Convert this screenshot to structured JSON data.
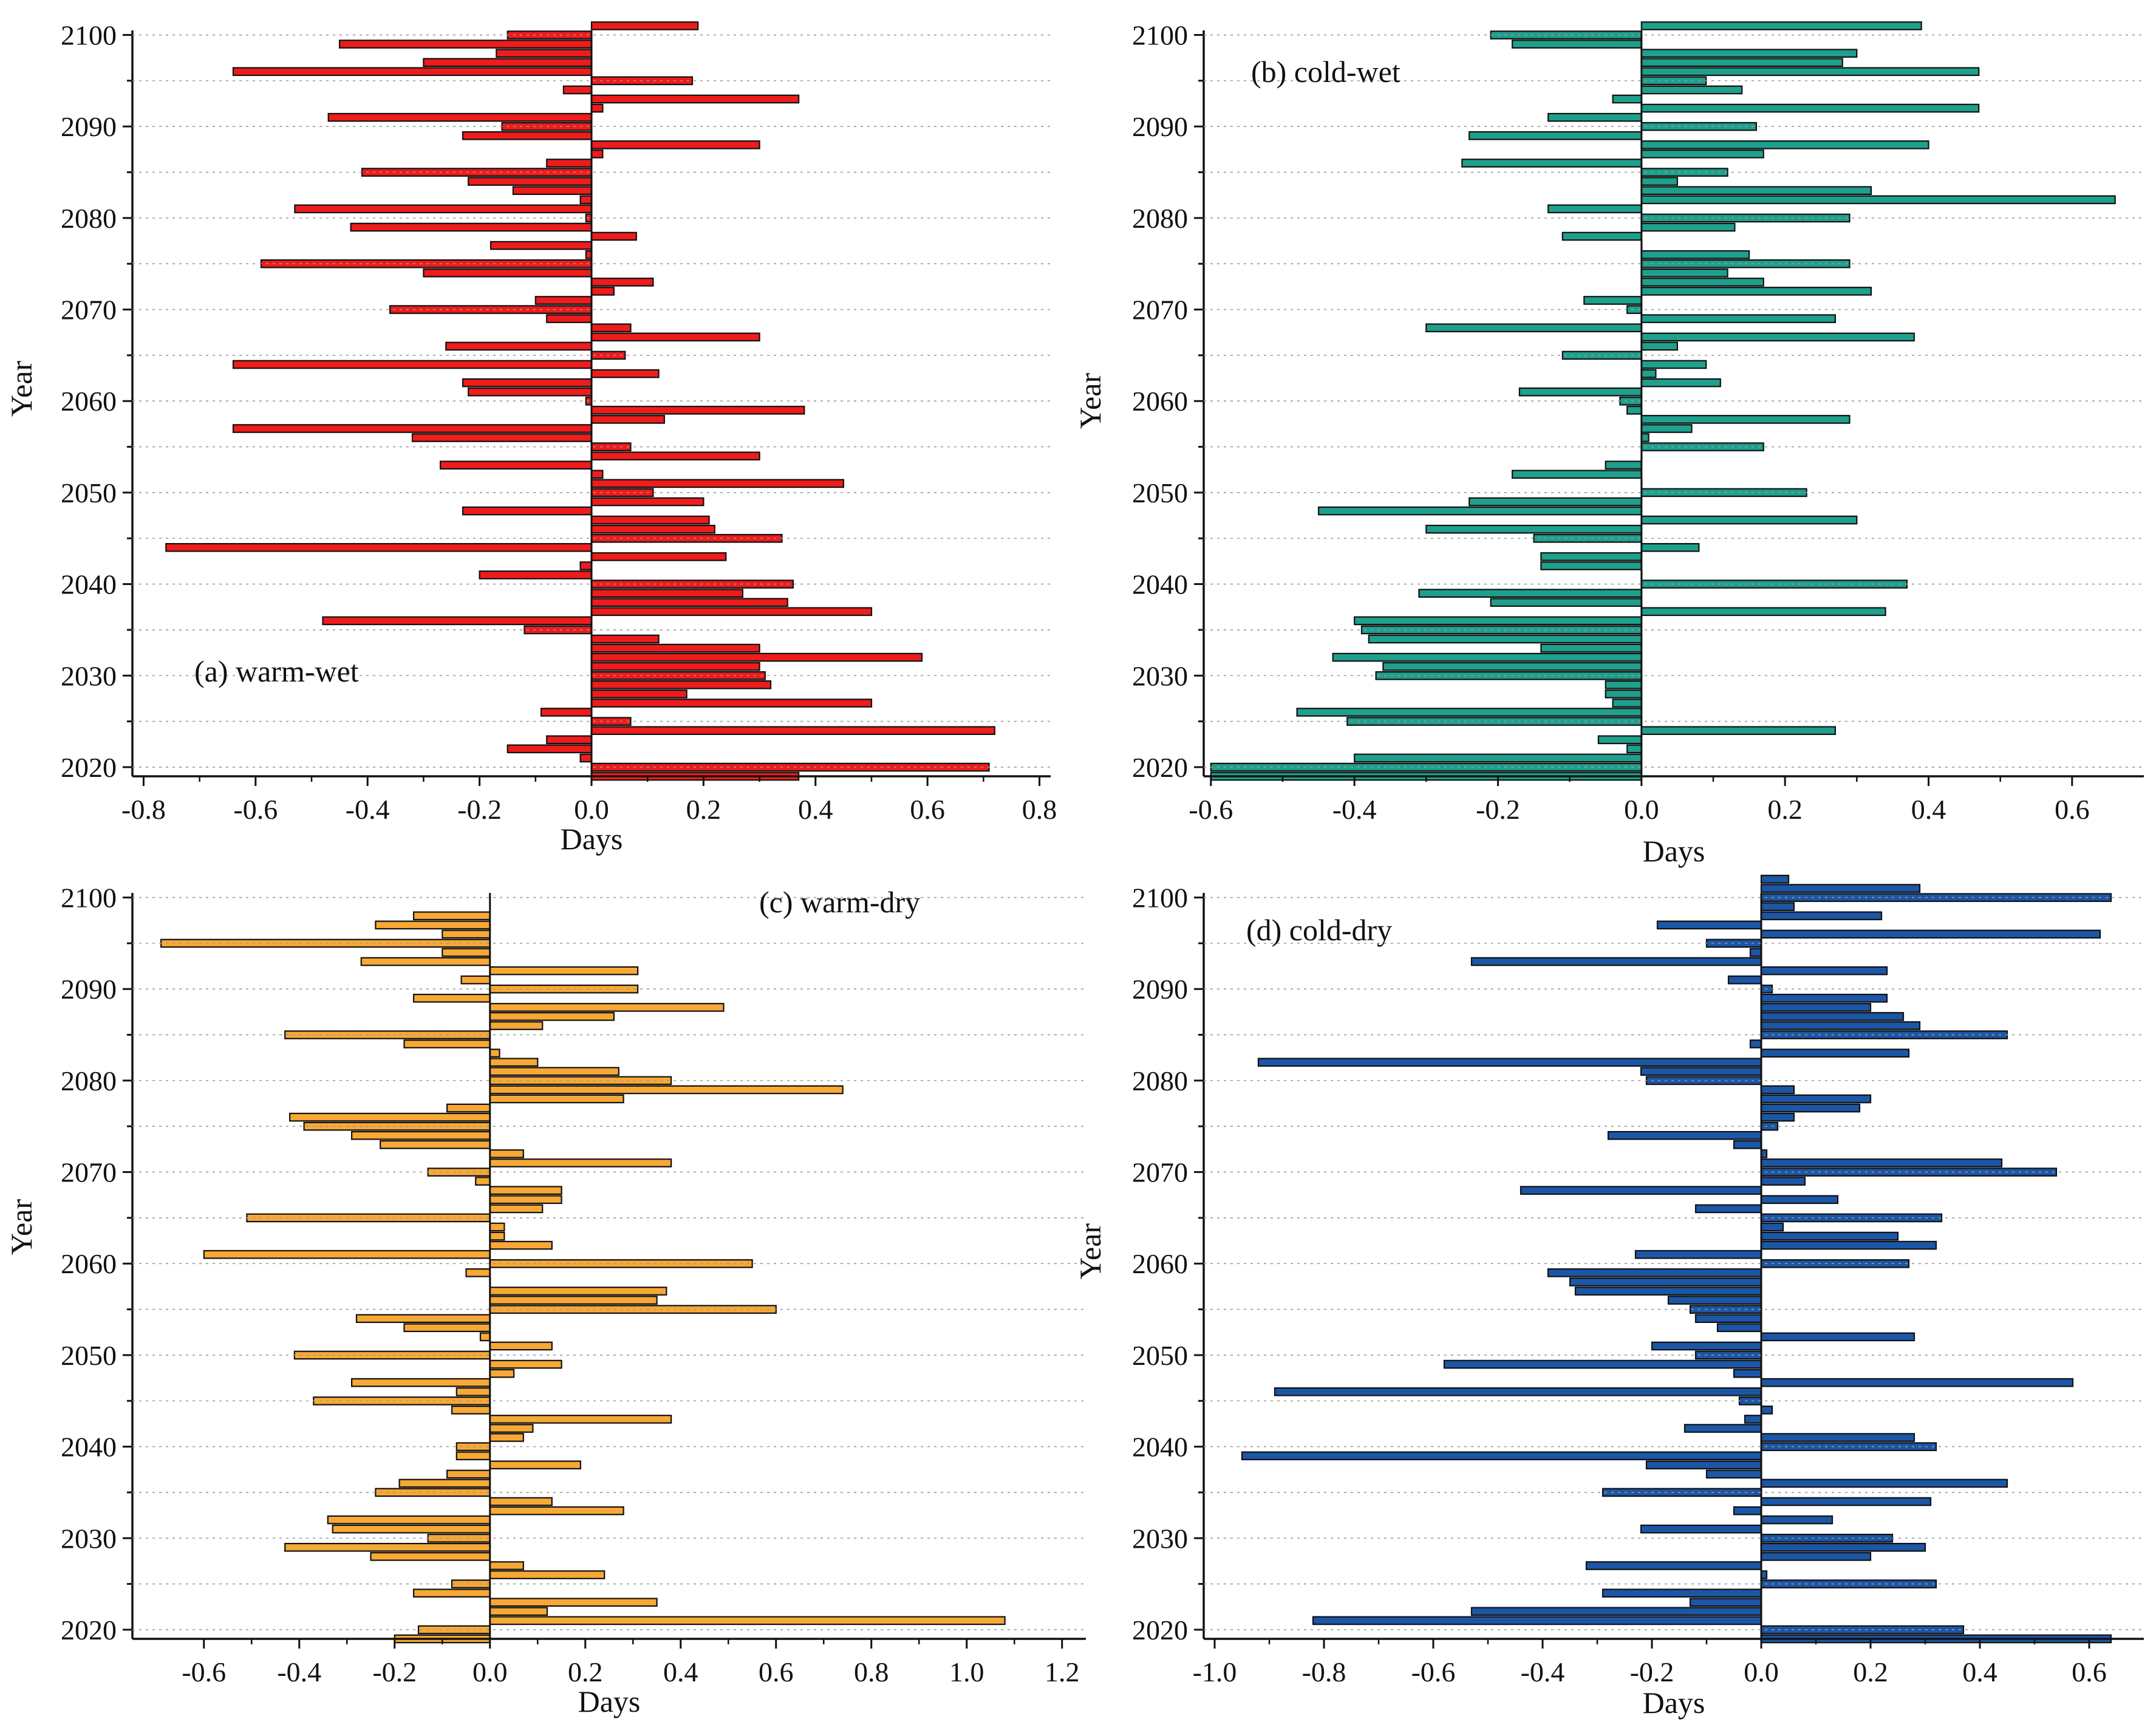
{
  "figure": {
    "background": "#ffffff",
    "axis_color": "#111111",
    "bar_stroke": "#111111"
  },
  "chart_data": [
    {
      "type": "bar",
      "orientation": "horizontal",
      "panel_label": "(a) warm-wet",
      "xlabel": "Days",
      "ylabel": "Year",
      "color": "#ee1c1c",
      "xlim": [
        -0.82,
        0.82
      ],
      "xticks": [
        -0.8,
        -0.6,
        -0.4,
        -0.2,
        0.0,
        0.2,
        0.4,
        0.6,
        0.8
      ],
      "xtick_labels": [
        "-0.8",
        "-0.6",
        "-0.4",
        "-0.2",
        "0.0",
        "0.2",
        "0.4",
        "0.6",
        "0.8"
      ],
      "ylim": [
        2019,
        2100.5
      ],
      "yticks": [
        2020,
        2030,
        2040,
        2050,
        2060,
        2070,
        2080,
        2090,
        2100
      ],
      "ytick_labels": [
        "2020",
        "2030",
        "2040",
        "2050",
        "2060",
        "2070",
        "2080",
        "2090",
        "2100"
      ],
      "years_start": 2019,
      "values": [
        0.37,
        0.71,
        -0.02,
        -0.15,
        -0.08,
        0.72,
        0.07,
        -0.09,
        0.5,
        0.17,
        0.32,
        0.31,
        0.3,
        0.59,
        0.3,
        0.12,
        -0.12,
        -0.48,
        0.5,
        0.35,
        0.27,
        0.36,
        -0.2,
        -0.02,
        0.24,
        -0.76,
        0.34,
        0.22,
        0.21,
        -0.23,
        0.2,
        0.11,
        0.45,
        0.02,
        -0.27,
        0.3,
        0.07,
        -0.32,
        -0.64,
        0.13,
        0.38,
        -0.01,
        -0.22,
        -0.23,
        0.12,
        -0.64,
        0.06,
        -0.26,
        0.3,
        0.07,
        -0.08,
        -0.36,
        -0.1,
        0.04,
        0.11,
        -0.3,
        -0.59,
        -0.01,
        -0.18,
        0.08,
        -0.43,
        -0.01,
        -0.53,
        -0.02,
        -0.14,
        -0.22,
        -0.41,
        -0.08,
        0.02,
        0.3,
        -0.23,
        -0.16,
        -0.47,
        0.02,
        0.37,
        -0.05,
        0.18,
        -0.64,
        -0.3,
        -0.17,
        -0.45,
        -0.15,
        0.19
      ]
    },
    {
      "type": "bar",
      "orientation": "horizontal",
      "panel_label": "(b) cold-wet",
      "xlabel": "Days",
      "ylabel": "Year",
      "color": "#1ea08c",
      "xlim": [
        -0.61,
        0.7
      ],
      "xticks": [
        -0.6,
        -0.4,
        -0.2,
        0.0,
        0.2,
        0.4,
        0.6
      ],
      "xtick_labels": [
        "-0.6",
        "-0.4",
        "-0.2",
        "0.0",
        "0.2",
        "0.4",
        "0.6"
      ],
      "ylim": [
        2019,
        2100.5
      ],
      "yticks": [
        2020,
        2030,
        2040,
        2050,
        2060,
        2070,
        2080,
        2090,
        2100
      ],
      "ytick_labels": [
        "2020",
        "2030",
        "2040",
        "2050",
        "2060",
        "2070",
        "2080",
        "2090",
        "2100"
      ],
      "years_start": 2019,
      "values": [
        -0.6,
        -0.6,
        -0.4,
        -0.02,
        -0.06,
        0.27,
        -0.41,
        -0.48,
        -0.04,
        -0.05,
        -0.05,
        -0.37,
        -0.36,
        -0.43,
        -0.14,
        -0.38,
        -0.39,
        -0.4,
        0.34,
        -0.21,
        -0.31,
        0.37,
        0.0,
        -0.14,
        -0.14,
        0.08,
        -0.15,
        -0.3,
        0.3,
        -0.45,
        -0.24,
        0.23,
        0.0,
        -0.18,
        -0.05,
        0.0,
        0.17,
        0.01,
        0.07,
        0.29,
        -0.02,
        -0.03,
        -0.17,
        0.11,
        0.02,
        0.09,
        -0.11,
        0.05,
        0.38,
        -0.3,
        0.27,
        -0.02,
        -0.08,
        0.32,
        0.17,
        0.12,
        0.29,
        0.15,
        0.0,
        -0.11,
        0.13,
        0.29,
        -0.13,
        0.66,
        0.32,
        0.05,
        0.12,
        -0.25,
        0.17,
        0.4,
        -0.24,
        0.16,
        -0.13,
        0.47,
        -0.04,
        0.14,
        0.09,
        0.47,
        0.28,
        0.3,
        -0.18,
        -0.21,
        0.39
      ]
    },
    {
      "type": "bar",
      "orientation": "horizontal",
      "panel_label": "(c) warm-dry",
      "xlabel": "Days",
      "ylabel": "Year",
      "color": "#f7a835",
      "xlim": [
        -0.75,
        1.25
      ],
      "xticks": [
        -0.6,
        -0.4,
        -0.2,
        0.0,
        0.2,
        0.4,
        0.6,
        0.8,
        1.0,
        1.2
      ],
      "xtick_labels": [
        "-0.6",
        "-0.4",
        "-0.2",
        "0.0",
        "0.2",
        "0.4",
        "0.6",
        "0.8",
        "1.0",
        "1.2"
      ],
      "ylim": [
        2019,
        2100.5
      ],
      "yticks": [
        2020,
        2030,
        2040,
        2050,
        2060,
        2070,
        2080,
        2090,
        2100
      ],
      "ytick_labels": [
        "2020",
        "2030",
        "2040",
        "2050",
        "2060",
        "2070",
        "2080",
        "2090",
        "2100"
      ],
      "years_start": 2019,
      "values": [
        -0.2,
        -0.15,
        1.08,
        0.12,
        0.35,
        -0.16,
        -0.08,
        0.24,
        0.07,
        -0.25,
        -0.43,
        -0.13,
        -0.33,
        -0.34,
        0.28,
        0.13,
        -0.24,
        -0.19,
        -0.09,
        0.19,
        -0.07,
        -0.07,
        0.07,
        0.09,
        0.38,
        -0.08,
        -0.37,
        -0.07,
        -0.29,
        0.05,
        0.15,
        -0.41,
        0.13,
        -0.02,
        -0.18,
        -0.28,
        0.6,
        0.35,
        0.37,
        0.0,
        -0.05,
        0.55,
        -0.6,
        0.13,
        0.03,
        0.03,
        -0.51,
        0.11,
        0.15,
        0.15,
        -0.03,
        -0.13,
        0.38,
        0.07,
        -0.23,
        -0.29,
        -0.39,
        -0.42,
        -0.09,
        0.28,
        0.74,
        0.38,
        0.27,
        0.1,
        0.02,
        -0.18,
        -0.43,
        0.11,
        0.26,
        0.49,
        -0.16,
        0.31,
        -0.06,
        0.31,
        -0.27,
        -0.1,
        -0.69,
        -0.1,
        -0.24,
        -0.16
      ]
    },
    {
      "type": "bar",
      "orientation": "horizontal",
      "panel_label": "(d) cold-dry",
      "xlabel": "Days",
      "ylabel": "Year",
      "color": "#1c56a6",
      "xlim": [
        -1.02,
        0.7
      ],
      "xticks": [
        -1.0,
        -0.8,
        -0.6,
        -0.4,
        -0.2,
        0.0,
        0.2,
        0.4,
        0.6
      ],
      "xtick_labels": [
        "-1.0",
        "-0.8",
        "-0.6",
        "-0.4",
        "-0.2",
        "0.0",
        "0.2",
        "0.4",
        "0.6"
      ],
      "ylim": [
        2019,
        2100.5
      ],
      "yticks": [
        2020,
        2030,
        2040,
        2050,
        2060,
        2070,
        2080,
        2090,
        2100
      ],
      "ytick_labels": [
        "2020",
        "2030",
        "2040",
        "2050",
        "2060",
        "2070",
        "2080",
        "2090",
        "2100"
      ],
      "years_start": 2019,
      "values": [
        0.64,
        0.37,
        -0.82,
        -0.53,
        -0.13,
        -0.29,
        0.32,
        0.01,
        -0.32,
        0.2,
        0.3,
        0.24,
        -0.22,
        0.13,
        -0.05,
        0.31,
        -0.29,
        0.45,
        -0.1,
        -0.21,
        -0.95,
        0.32,
        0.28,
        -0.14,
        -0.03,
        0.02,
        -0.04,
        -0.89,
        0.57,
        -0.05,
        -0.58,
        -0.12,
        -0.2,
        0.28,
        -0.08,
        -0.12,
        -0.13,
        -0.17,
        -0.34,
        -0.35,
        -0.39,
        0.27,
        -0.23,
        0.32,
        0.25,
        0.04,
        0.33,
        -0.12,
        0.14,
        -0.44,
        0.08,
        0.54,
        0.44,
        0.01,
        -0.05,
        -0.28,
        0.03,
        0.06,
        0.18,
        0.2,
        0.06,
        -0.21,
        -0.22,
        -0.92,
        0.27,
        -0.02,
        0.45,
        0.29,
        0.26,
        0.2,
        0.23,
        0.02,
        -0.06,
        0.23,
        -0.53,
        -0.02,
        -0.1,
        0.62,
        -0.19,
        0.22,
        0.06,
        0.64,
        0.29,
        0.05
      ]
    }
  ]
}
